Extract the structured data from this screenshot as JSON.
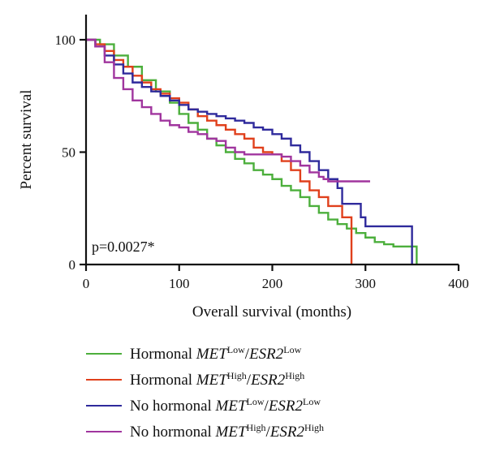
{
  "chart_data": {
    "type": "line",
    "subtype": "kaplan-meier step",
    "xlabel": "Overall survival (months)",
    "ylabel": "Percent survival",
    "xlim": [
      0,
      400
    ],
    "ylim": [
      0,
      100
    ],
    "xticks": [
      0,
      100,
      200,
      300,
      400
    ],
    "yticks": [
      0,
      50,
      100
    ],
    "annotation": "p=0.0027*",
    "legend_position": "bottom",
    "series": [
      {
        "name": "Hormonal MET Low/ESR2 Low",
        "color": "#4caf3c",
        "points": [
          [
            0,
            100
          ],
          [
            15,
            98
          ],
          [
            30,
            93
          ],
          [
            45,
            88
          ],
          [
            60,
            82
          ],
          [
            75,
            77
          ],
          [
            90,
            72
          ],
          [
            100,
            67
          ],
          [
            110,
            63
          ],
          [
            120,
            60
          ],
          [
            130,
            56
          ],
          [
            140,
            53
          ],
          [
            150,
            50
          ],
          [
            160,
            47
          ],
          [
            170,
            45
          ],
          [
            180,
            42
          ],
          [
            190,
            40
          ],
          [
            200,
            38
          ],
          [
            210,
            35
          ],
          [
            220,
            33
          ],
          [
            230,
            30
          ],
          [
            240,
            26
          ],
          [
            250,
            23
          ],
          [
            260,
            20
          ],
          [
            270,
            18
          ],
          [
            280,
            16
          ],
          [
            290,
            14
          ],
          [
            300,
            12
          ],
          [
            310,
            10
          ],
          [
            320,
            9
          ],
          [
            330,
            8
          ],
          [
            350,
            8
          ],
          [
            355,
            8
          ],
          [
            355,
            0
          ]
        ]
      },
      {
        "name": "Hormonal MET High/ESR2 High",
        "color": "#e0401c",
        "points": [
          [
            0,
            100
          ],
          [
            10,
            98
          ],
          [
            20,
            95
          ],
          [
            30,
            91
          ],
          [
            40,
            88
          ],
          [
            50,
            84
          ],
          [
            60,
            81
          ],
          [
            70,
            78
          ],
          [
            80,
            76
          ],
          [
            90,
            74
          ],
          [
            100,
            72
          ],
          [
            110,
            69
          ],
          [
            120,
            66
          ],
          [
            130,
            64
          ],
          [
            140,
            62
          ],
          [
            150,
            60
          ],
          [
            160,
            58
          ],
          [
            170,
            56
          ],
          [
            180,
            52
          ],
          [
            190,
            50
          ],
          [
            200,
            49
          ],
          [
            210,
            46
          ],
          [
            220,
            42
          ],
          [
            230,
            37
          ],
          [
            240,
            33
          ],
          [
            250,
            30
          ],
          [
            260,
            26
          ],
          [
            270,
            26
          ],
          [
            275,
            21
          ],
          [
            285,
            21
          ],
          [
            285,
            0
          ]
        ]
      },
      {
        "name": "No hormonal MET Low/ESR2 Low",
        "color": "#2f2a9c",
        "points": [
          [
            0,
            100
          ],
          [
            10,
            97
          ],
          [
            20,
            93
          ],
          [
            30,
            89
          ],
          [
            40,
            85
          ],
          [
            50,
            81
          ],
          [
            60,
            79
          ],
          [
            70,
            77
          ],
          [
            80,
            75
          ],
          [
            90,
            73
          ],
          [
            100,
            71
          ],
          [
            110,
            69
          ],
          [
            120,
            68
          ],
          [
            130,
            67
          ],
          [
            140,
            66
          ],
          [
            150,
            65
          ],
          [
            160,
            64
          ],
          [
            170,
            63
          ],
          [
            180,
            61
          ],
          [
            190,
            60
          ],
          [
            200,
            58
          ],
          [
            210,
            56
          ],
          [
            220,
            53
          ],
          [
            230,
            50
          ],
          [
            240,
            46
          ],
          [
            250,
            42
          ],
          [
            260,
            38
          ],
          [
            270,
            34
          ],
          [
            275,
            27
          ],
          [
            285,
            27
          ],
          [
            295,
            21
          ],
          [
            300,
            17
          ],
          [
            350,
            17
          ],
          [
            350,
            0
          ]
        ]
      },
      {
        "name": "No hormonal MET High/ESR2 High",
        "color": "#a0359e",
        "points": [
          [
            0,
            100
          ],
          [
            10,
            97
          ],
          [
            20,
            90
          ],
          [
            30,
            83
          ],
          [
            40,
            78
          ],
          [
            50,
            73
          ],
          [
            60,
            70
          ],
          [
            70,
            67
          ],
          [
            80,
            64
          ],
          [
            90,
            62
          ],
          [
            100,
            61
          ],
          [
            110,
            59
          ],
          [
            120,
            58
          ],
          [
            130,
            56
          ],
          [
            140,
            55
          ],
          [
            150,
            52
          ],
          [
            160,
            50
          ],
          [
            170,
            49
          ],
          [
            180,
            49
          ],
          [
            200,
            49
          ],
          [
            210,
            48
          ],
          [
            220,
            46
          ],
          [
            230,
            44
          ],
          [
            240,
            41
          ],
          [
            250,
            39
          ],
          [
            255,
            38
          ],
          [
            260,
            37
          ],
          [
            305,
            37
          ]
        ]
      }
    ]
  },
  "legend": {
    "items": [
      {
        "prefix": "Hormonal ",
        "gene1": "MET",
        "sup1": "Low",
        "gene2": "ESR2",
        "sup2": "Low",
        "color": "#4caf3c"
      },
      {
        "prefix": "Hormonal ",
        "gene1": "MET",
        "sup1": "High",
        "gene2": "ESR2",
        "sup2": "High",
        "color": "#e0401c"
      },
      {
        "prefix": "No hormonal ",
        "gene1": "MET",
        "sup1": "Low",
        "gene2": "ESR2",
        "sup2": "Low",
        "color": "#2f2a9c"
      },
      {
        "prefix": "No hormonal ",
        "gene1": "MET",
        "sup1": "High",
        "gene2": "ESR2",
        "sup2": "High",
        "color": "#a0359e"
      }
    ]
  }
}
